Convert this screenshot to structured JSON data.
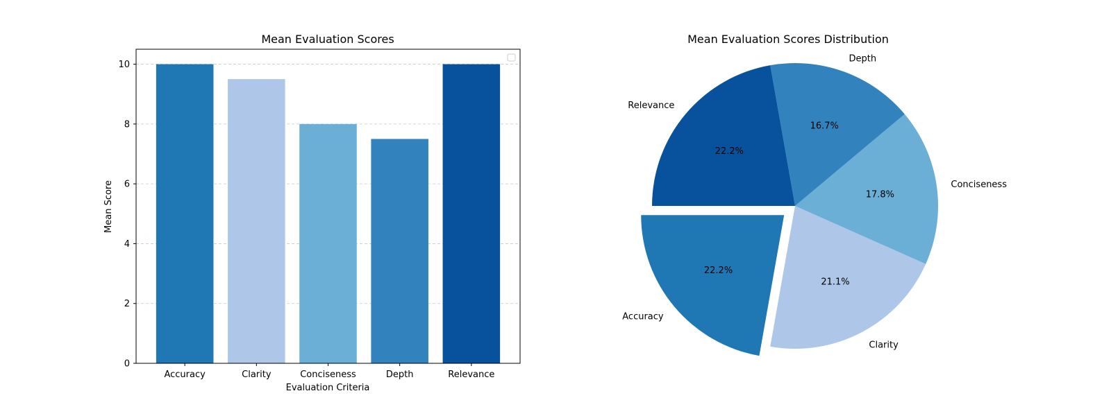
{
  "chart_data": [
    {
      "type": "bar",
      "title": "Mean Evaluation Scores",
      "xlabel": "Evaluation Criteria",
      "ylabel": "Mean Score",
      "categories": [
        "Accuracy",
        "Clarity",
        "Conciseness",
        "Depth",
        "Relevance"
      ],
      "values": [
        10,
        9.5,
        8,
        7.5,
        10
      ],
      "colors": [
        "#1f77b4",
        "#aec7e8",
        "#6baed6",
        "#3182bd",
        "#08519c"
      ],
      "ylim": [
        0,
        10.5
      ],
      "yticks": [
        "0",
        "2",
        "4",
        "6",
        "8",
        "10"
      ],
      "grid": true,
      "legend": "top-right (empty)"
    },
    {
      "type": "pie",
      "title": "Mean Evaluation Scores Distribution",
      "labels": [
        "Accuracy",
        "Clarity",
        "Conciseness",
        "Depth",
        "Relevance"
      ],
      "values": [
        10,
        9.5,
        8,
        7.5,
        10
      ],
      "percent_labels": [
        "22.2%",
        "21.1%",
        "17.8%",
        "16.7%",
        "22.2%"
      ],
      "colors": [
        "#1f77b4",
        "#aec7e8",
        "#6baed6",
        "#3182bd",
        "#08519c"
      ],
      "exploded": [
        "Accuracy"
      ],
      "start_angle_deg": 180,
      "direction": "counterclockwise"
    }
  ]
}
